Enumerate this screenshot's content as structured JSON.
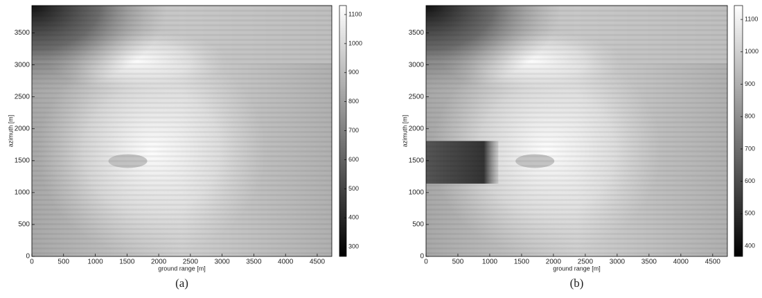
{
  "chart_data": [
    {
      "type": "image",
      "caption": "(a)",
      "x_label": "ground range [m]",
      "y_label": "azimuth [m]",
      "xlim": [
        0,
        4730
      ],
      "xticks": [
        0,
        500,
        1000,
        1500,
        2000,
        2500,
        3000,
        3500,
        4000,
        4500
      ],
      "ylim": [
        0,
        3930
      ],
      "yticks": [
        0,
        500,
        1000,
        1500,
        2000,
        2500,
        3000,
        3500
      ],
      "colormap": "gray",
      "clim": [
        267,
        1131
      ],
      "cticks": [
        300,
        400,
        500,
        600,
        700,
        800,
        900,
        1000,
        1100
      ]
    },
    {
      "type": "image",
      "caption": "(b)",
      "x_label": "ground range [m]",
      "y_label": "azimuth [m]",
      "xlim": [
        0,
        4730
      ],
      "xticks": [
        0,
        500,
        1000,
        1500,
        2000,
        2500,
        3000,
        3500,
        4000,
        4500
      ],
      "ylim": [
        0,
        3930
      ],
      "yticks": [
        0,
        500,
        1000,
        1500,
        2000,
        2500,
        3000,
        3500
      ],
      "colormap": "gray",
      "clim": [
        368,
        1143
      ],
      "cticks": [
        400,
        500,
        600,
        700,
        800,
        900,
        1000,
        1100
      ]
    }
  ]
}
